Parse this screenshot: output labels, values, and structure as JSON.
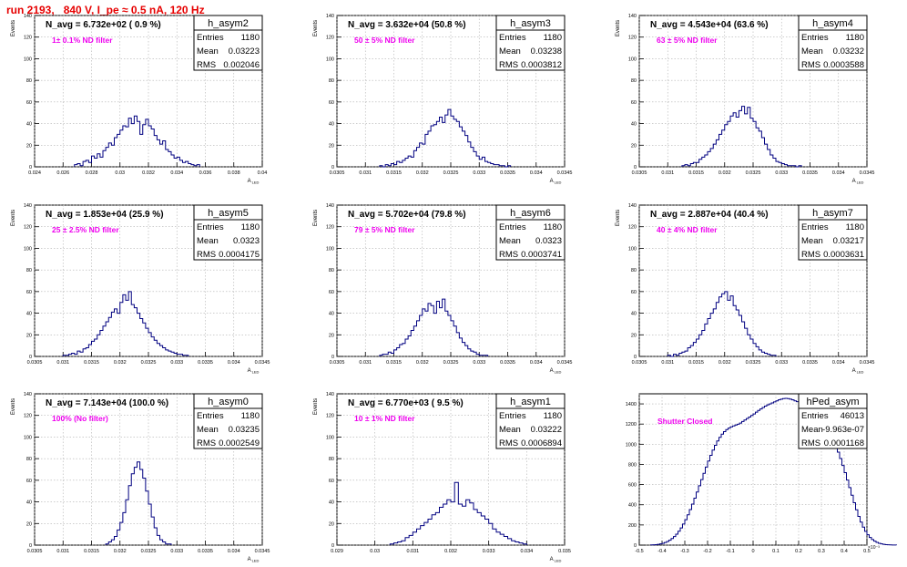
{
  "header": {
    "run_label": "run 2193,   840 V, I_pe ≈ 0.5 nA, 120 Hz"
  },
  "colors": {
    "title": "#e60000",
    "annotation": "#ee00ee",
    "histogram": "#000080",
    "grid": "#b0b0b0"
  },
  "chart_data": [
    {
      "type": "bar",
      "title": "h_asym2",
      "stats": {
        "Entries": "1180",
        "Mean": "0.03223",
        "RMS": "0.002046"
      },
      "navg": "N_avg = 6.732e+02 ( 0.9 %)",
      "note": "1± 0.1% ND filter",
      "xlim": [
        0.024,
        0.04
      ],
      "ylim": [
        0,
        140
      ],
      "xticks": [
        "0.024",
        "0.026",
        "0.028",
        "0.03",
        "0.032",
        "0.034",
        "0.036",
        "0.038",
        "0.04"
      ],
      "yticks": [
        "0",
        "20",
        "40",
        "60",
        "80",
        "100",
        "120",
        "140"
      ],
      "xlabel": "A_LED",
      "ylabel": "Events",
      "bins": {
        "start": 0.0268,
        "width": 0.0002,
        "counts": [
          2,
          3,
          1,
          5,
          6,
          4,
          10,
          8,
          12,
          9,
          15,
          18,
          22,
          20,
          27,
          30,
          34,
          38,
          37,
          45,
          40,
          47,
          42,
          30,
          39,
          44,
          38,
          35,
          29,
          25,
          21,
          24,
          16,
          14,
          11,
          8,
          9,
          6,
          4,
          5,
          3,
          2,
          1,
          2
        ]
      }
    },
    {
      "type": "bar",
      "title": "h_asym3",
      "stats": {
        "Entries": "1180",
        "Mean": "0.03238",
        "RMS": "0.0003812"
      },
      "navg": "N_avg = 3.632e+04 (50.8 %)",
      "note": "50 ± 5% ND filter",
      "xlim": [
        0.0305,
        0.0345
      ],
      "ylim": [
        0,
        140
      ],
      "xticks": [
        "0.0305",
        "0.031",
        "0.0315",
        "0.032",
        "0.0325",
        "0.033",
        "0.0335",
        "0.034",
        "0.0345"
      ],
      "yticks": [
        "0",
        "20",
        "40",
        "60",
        "80",
        "100",
        "120",
        "140"
      ],
      "xlabel": "A_LED",
      "ylabel": "Events",
      "bins": {
        "start": 0.03125,
        "width": 5e-05,
        "counts": [
          1,
          0,
          2,
          1,
          3,
          2,
          5,
          4,
          6,
          8,
          10,
          9,
          15,
          18,
          22,
          21,
          30,
          33,
          38,
          39,
          42,
          46,
          41,
          48,
          53,
          47,
          44,
          42,
          37,
          33,
          29,
          23,
          18,
          14,
          10,
          7,
          9,
          5,
          4,
          3,
          2,
          2,
          1,
          1,
          0,
          1
        ]
      }
    },
    {
      "type": "bar",
      "title": "h_asym4",
      "stats": {
        "Entries": "1180",
        "Mean": "0.03232",
        "RMS": "0.0003588"
      },
      "navg": "N_avg = 4.543e+04 (63.6 %)",
      "note": "63 ± 5% ND filter",
      "xlim": [
        0.0305,
        0.0345
      ],
      "ylim": [
        0,
        140
      ],
      "xticks": [
        "0.0305",
        "0.031",
        "0.0315",
        "0.032",
        "0.0325",
        "0.033",
        "0.0335",
        "0.034",
        "0.0345"
      ],
      "yticks": [
        "0",
        "20",
        "40",
        "60",
        "80",
        "100",
        "120",
        "140"
      ],
      "xlabel": "A_LED",
      "ylabel": "Events",
      "bins": {
        "start": 0.03125,
        "width": 5e-05,
        "counts": [
          1,
          2,
          1,
          3,
          4,
          4,
          7,
          9,
          11,
          14,
          17,
          21,
          25,
          30,
          34,
          39,
          42,
          47,
          50,
          46,
          52,
          56,
          49,
          55,
          45,
          42,
          36,
          33,
          27,
          21,
          16,
          11,
          8,
          5,
          4,
          3,
          2,
          1,
          1,
          1,
          0,
          1
        ]
      }
    },
    {
      "type": "bar",
      "title": "h_asym5",
      "stats": {
        "Entries": "1180",
        "Mean": "0.0323",
        "RMS": "0.0004175"
      },
      "navg": "N_avg = 1.853e+04 (25.9 %)",
      "note": "25 ± 2.5% ND filter",
      "xlim": [
        0.0305,
        0.0345
      ],
      "ylim": [
        0,
        140
      ],
      "xticks": [
        "0.0305",
        "0.031",
        "0.0315",
        "0.032",
        "0.0325",
        "0.033",
        "0.0335",
        "0.034",
        "0.0345"
      ],
      "yticks": [
        "0",
        "20",
        "40",
        "60",
        "80",
        "100",
        "120",
        "140"
      ],
      "xlabel": "A_LED",
      "ylabel": "Events",
      "bins": {
        "start": 0.031,
        "width": 5e-05,
        "counts": [
          1,
          1,
          2,
          3,
          2,
          5,
          4,
          7,
          8,
          11,
          14,
          16,
          20,
          24,
          28,
          32,
          36,
          41,
          44,
          40,
          50,
          57,
          52,
          60,
          48,
          45,
          40,
          35,
          31,
          26,
          22,
          18,
          15,
          12,
          10,
          8,
          6,
          5,
          4,
          3,
          2,
          2,
          1,
          1
        ]
      }
    },
    {
      "type": "bar",
      "title": "h_asym6",
      "stats": {
        "Entries": "1180",
        "Mean": "0.0323",
        "RMS": "0.0003741"
      },
      "navg": "N_avg = 5.702e+04 (79.8 %)",
      "note": "79 ± 5% ND filter",
      "xlim": [
        0.0305,
        0.0345
      ],
      "ylim": [
        0,
        140
      ],
      "xticks": [
        "0.0305",
        "0.031",
        "0.0315",
        "0.032",
        "0.0325",
        "0.033",
        "0.0335",
        "0.034",
        "0.0345"
      ],
      "yticks": [
        "0",
        "20",
        "40",
        "60",
        "80",
        "100",
        "120",
        "140"
      ],
      "xlabel": "A_LED",
      "ylabel": "Events",
      "bins": {
        "start": 0.03125,
        "width": 5e-05,
        "counts": [
          1,
          2,
          2,
          4,
          3,
          6,
          8,
          11,
          12,
          16,
          19,
          24,
          28,
          33,
          38,
          44,
          42,
          49,
          47,
          40,
          51,
          45,
          53,
          42,
          38,
          33,
          28,
          22,
          17,
          13,
          10,
          7,
          5,
          4,
          2,
          1,
          1,
          1
        ]
      }
    },
    {
      "type": "bar",
      "title": "h_asym7",
      "stats": {
        "Entries": "1180",
        "Mean": "0.03217",
        "RMS": "0.0003631"
      },
      "navg": "N_avg = 2.887e+04 (40.4 %)",
      "note": "40 ± 4% ND filter",
      "xlim": [
        0.0305,
        0.0345
      ],
      "ylim": [
        0,
        140
      ],
      "xticks": [
        "0.0305",
        "0.031",
        "0.0315",
        "0.032",
        "0.0325",
        "0.033",
        "0.0335",
        "0.034",
        "0.0345"
      ],
      "yticks": [
        "0",
        "20",
        "40",
        "60",
        "80",
        "100",
        "120",
        "140"
      ],
      "xlabel": "A_LED",
      "ylabel": "Events",
      "bins": {
        "start": 0.031,
        "width": 5e-05,
        "counts": [
          1,
          0,
          2,
          1,
          3,
          4,
          5,
          8,
          10,
          13,
          16,
          20,
          24,
          30,
          35,
          40,
          44,
          50,
          55,
          58,
          60,
          52,
          56,
          47,
          43,
          38,
          32,
          26,
          20,
          16,
          12,
          9,
          6,
          4,
          3,
          2,
          1,
          1
        ]
      }
    },
    {
      "type": "bar",
      "title": "h_asym0",
      "stats": {
        "Entries": "1180",
        "Mean": "0.03235",
        "RMS": "0.0002549"
      },
      "navg": "N_avg = 7.143e+04 (100.0 %)",
      "note": "100% (No filter)",
      "xlim": [
        0.0305,
        0.0345
      ],
      "ylim": [
        0,
        140
      ],
      "xticks": [
        "0.0305",
        "0.031",
        "0.0315",
        "0.032",
        "0.0325",
        "0.033",
        "0.0335",
        "0.034",
        "0.0345"
      ],
      "yticks": [
        "0",
        "20",
        "40",
        "60",
        "80",
        "100",
        "120",
        "140"
      ],
      "xlabel": "A_LED",
      "ylabel": "Events",
      "bins": {
        "start": 0.03175,
        "width": 5e-05,
        "counts": [
          1,
          3,
          5,
          8,
          14,
          21,
          30,
          42,
          55,
          66,
          72,
          77,
          70,
          62,
          50,
          38,
          26,
          16,
          9,
          5,
          3,
          1,
          1
        ]
      }
    },
    {
      "type": "bar",
      "title": "h_asym1",
      "stats": {
        "Entries": "1180",
        "Mean": "0.03222",
        "RMS": "0.0006894"
      },
      "navg": "N_avg = 6.770e+03 ( 9.5 %)",
      "note": "10 ± 1% ND filter",
      "xlim": [
        0.029,
        0.035
      ],
      "ylim": [
        0,
        140
      ],
      "xticks": [
        "0.029",
        "0.03",
        "0.031",
        "0.032",
        "0.033",
        "0.034",
        "0.035"
      ],
      "yticks": [
        "0",
        "20",
        "40",
        "60",
        "80",
        "100",
        "120",
        "140"
      ],
      "xlabel": "A_LED",
      "ylabel": "Events",
      "bins": {
        "start": 0.0304,
        "width": 0.0001,
        "counts": [
          1,
          2,
          3,
          4,
          7,
          9,
          12,
          15,
          18,
          21,
          24,
          28,
          30,
          35,
          38,
          42,
          40,
          58,
          38,
          36,
          42,
          39,
          33,
          30,
          27,
          24,
          20,
          15,
          12,
          10,
          8,
          6,
          4,
          3,
          2,
          1
        ]
      }
    },
    {
      "type": "bar",
      "title": "hPed_asym",
      "stats": {
        "Entries": "46013",
        "Mean": "-9.963e-07",
        "RMS": "0.0001168"
      },
      "navg": "",
      "note": "Shutter Closed",
      "xlim": [
        -0.5,
        0.5
      ],
      "ylim": [
        0,
        1500
      ],
      "xtick_exponent": "×10⁻³",
      "xticks": [
        "-0.5",
        "-0.4",
        "-0.3",
        "-0.2",
        "-0.1",
        "0",
        "0.1",
        "0.2",
        "0.3",
        "0.4",
        "0.5"
      ],
      "yticks": [
        "0",
        "200",
        "400",
        "600",
        "800",
        "1000",
        "1200",
        "1400"
      ],
      "xlabel": "",
      "ylabel": "",
      "bins": {
        "start": -0.45,
        "width": 0.01,
        "counts": [
          2,
          3,
          5,
          8,
          12,
          18,
          26,
          36,
          49,
          65,
          85,
          109,
          138,
          171,
          209,
          252,
          300,
          352,
          407,
          465,
          526,
          588,
          650,
          712,
          774,
          834,
          890,
          942,
          990,
          1032,
          1069,
          1100,
          1125,
          1145,
          1160,
          1172,
          1182,
          1190,
          1198,
          1210,
          1225,
          1240,
          1255,
          1270,
          1285,
          1300,
          1318,
          1335,
          1350,
          1365,
          1378,
          1390,
          1400,
          1410,
          1420,
          1430,
          1440,
          1447,
          1452,
          1455,
          1452,
          1447,
          1440,
          1430,
          1422,
          1415,
          1410,
          1405,
          1398,
          1390,
          1378,
          1362,
          1342,
          1318,
          1290,
          1258,
          1222,
          1182,
          1138,
          1090,
          1038,
          982,
          922,
          858,
          790,
          718,
          645,
          570,
          495,
          420,
          350,
          285,
          228,
          178,
          137,
          103,
          76,
          55,
          39,
          27,
          18,
          12,
          8,
          5,
          3,
          2,
          1,
          1
        ]
      }
    }
  ]
}
